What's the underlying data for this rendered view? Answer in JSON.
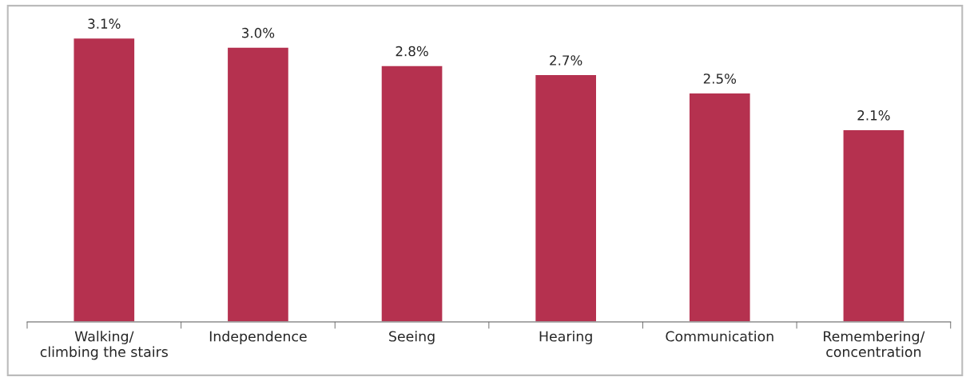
{
  "chart_data": {
    "type": "bar",
    "categories": [
      "Walking/\nclimbing the stairs",
      "Independence",
      "Seeing",
      "Hearing",
      "Communication",
      "Remembering/\nconcentration"
    ],
    "values": [
      3.1,
      3.0,
      2.8,
      2.7,
      2.5,
      2.1
    ],
    "value_labels": [
      "3.1%",
      "3.0%",
      "2.8%",
      "2.7%",
      "2.5%",
      "2.1%"
    ],
    "color": "#b5314f",
    "grid": false,
    "legend": false
  }
}
